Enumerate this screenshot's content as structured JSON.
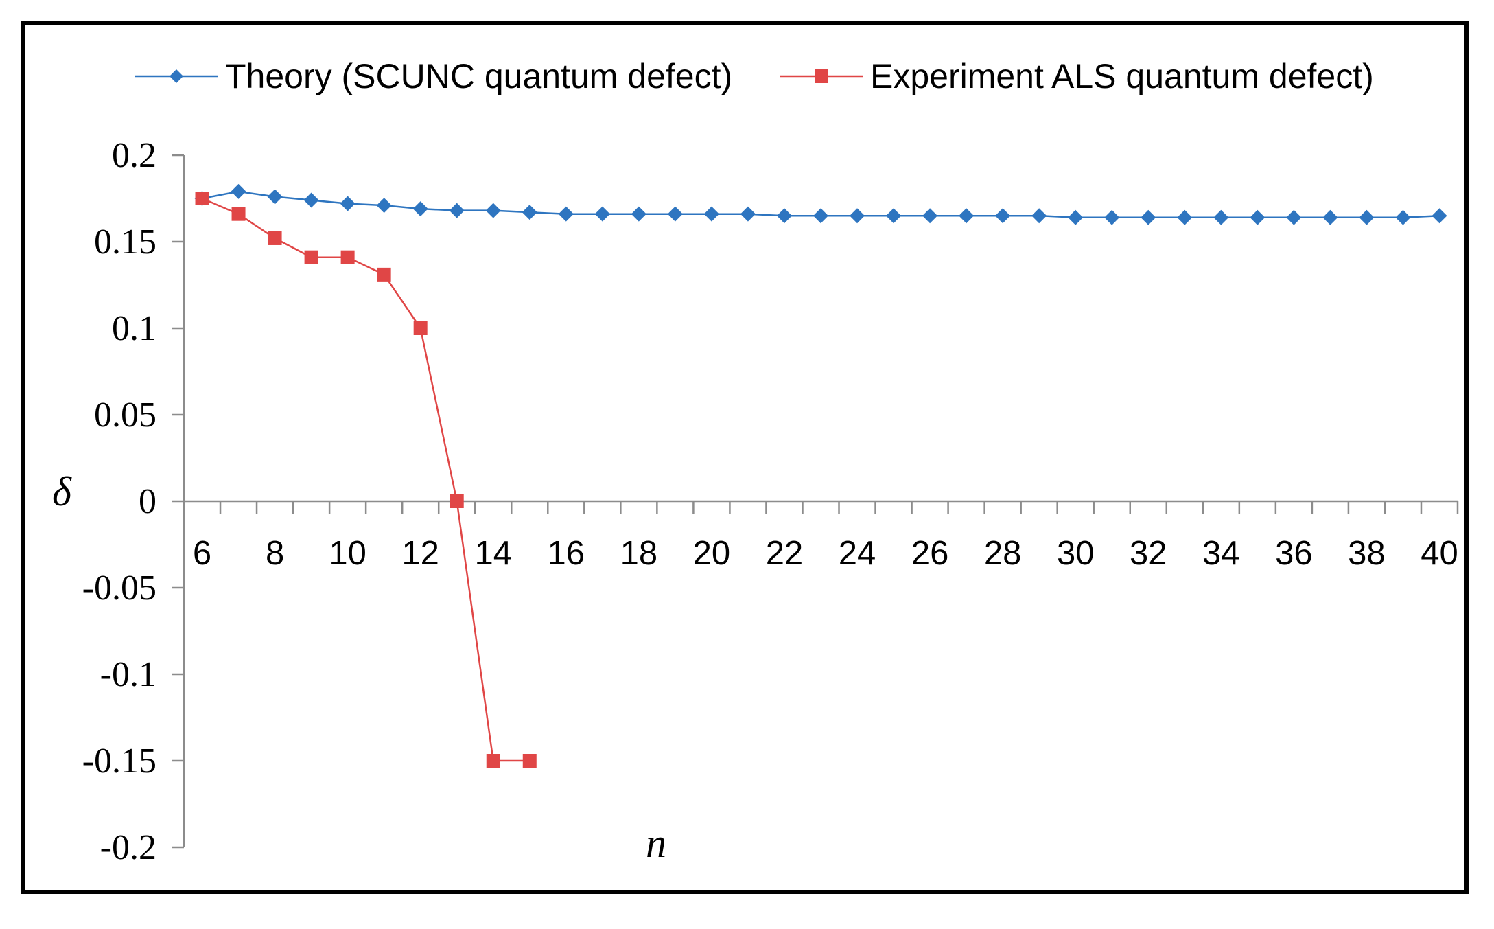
{
  "chart_data": {
    "type": "line",
    "title": "",
    "xlabel": "n",
    "ylabel": "δ",
    "xlim": [
      5.5,
      40.5
    ],
    "ylim": [
      -0.2,
      0.2
    ],
    "y_ticks": [
      0.2,
      0.15,
      0.1,
      0.05,
      0,
      -0.05,
      -0.1,
      -0.15,
      -0.2
    ],
    "y_tick_labels": [
      "0.2",
      "0.15",
      "0.1",
      "0.05",
      "0",
      "-0.05",
      "-0.1",
      "-0.15",
      "-0.2"
    ],
    "x_tick_labels": [
      "6",
      "8",
      "10",
      "12",
      "14",
      "16",
      "18",
      "20",
      "22",
      "24",
      "26",
      "28",
      "30",
      "32",
      "34",
      "36",
      "38",
      "40"
    ],
    "legend_position": "top",
    "series": [
      {
        "name": "Theory (SCUNC quantum defect)",
        "color": "#2e75c0",
        "marker": "diamond",
        "x": [
          6,
          7,
          8,
          9,
          10,
          11,
          12,
          13,
          14,
          15,
          16,
          17,
          18,
          19,
          20,
          21,
          22,
          23,
          24,
          25,
          26,
          27,
          28,
          29,
          30,
          31,
          32,
          33,
          34,
          35,
          36,
          37,
          38,
          39,
          40
        ],
        "values": [
          0.175,
          0.179,
          0.176,
          0.174,
          0.172,
          0.171,
          0.169,
          0.168,
          0.168,
          0.167,
          0.166,
          0.166,
          0.166,
          0.166,
          0.166,
          0.166,
          0.165,
          0.165,
          0.165,
          0.165,
          0.165,
          0.165,
          0.165,
          0.165,
          0.164,
          0.164,
          0.164,
          0.164,
          0.164,
          0.164,
          0.164,
          0.164,
          0.164,
          0.164,
          0.165
        ]
      },
      {
        "name": "Experiment ALS quantum defect)",
        "color": "#e04646",
        "marker": "square",
        "x": [
          6,
          7,
          8,
          9,
          10,
          11,
          12,
          13,
          14,
          15
        ],
        "values": [
          0.175,
          0.166,
          0.152,
          0.141,
          0.141,
          0.131,
          0.1,
          0.0,
          -0.15,
          -0.15
        ]
      }
    ]
  }
}
